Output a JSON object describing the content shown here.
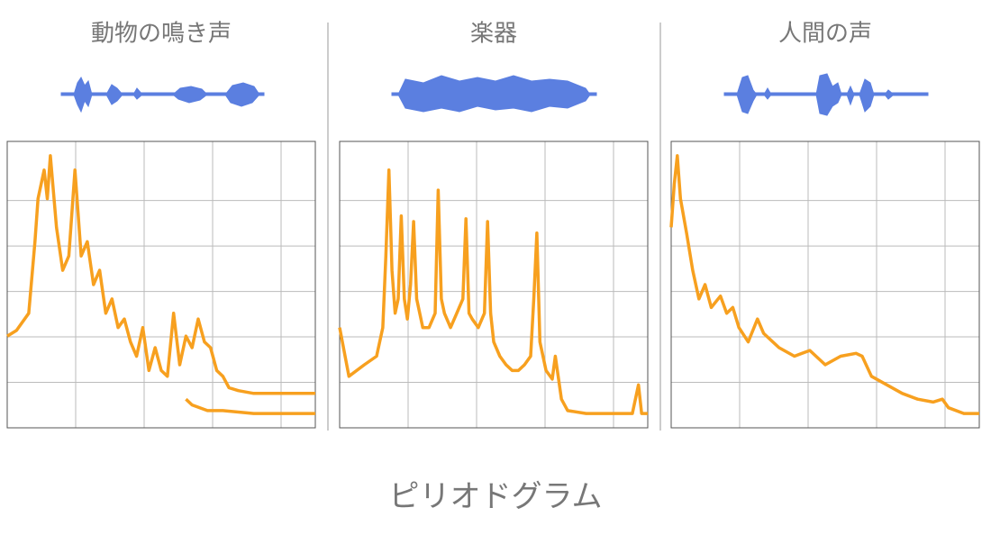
{
  "chart_data": [
    {
      "type": "line",
      "title": "動物の鳴き声",
      "color": "#f7a01f",
      "xlim": [
        0,
        100
      ],
      "ylim": [
        0,
        100
      ],
      "grid": true,
      "series": [
        {
          "x": [
            0,
            3,
            7,
            9,
            10,
            12,
            13,
            14,
            16,
            18,
            20,
            22,
            24,
            26,
            28,
            30,
            32,
            34,
            36,
            38,
            40,
            42,
            44,
            46,
            48,
            50,
            52,
            54,
            56,
            58,
            60,
            62,
            64,
            66,
            68,
            70,
            72,
            75,
            80,
            85,
            90,
            95,
            100
          ],
          "values": [
            32,
            34,
            40,
            65,
            80,
            90,
            80,
            95,
            70,
            55,
            60,
            90,
            60,
            65,
            50,
            55,
            40,
            45,
            35,
            38,
            30,
            25,
            35,
            20,
            28,
            20,
            18,
            40,
            22,
            32,
            28,
            38,
            30,
            28,
            20,
            18,
            14,
            13,
            12,
            12,
            12,
            12,
            12
          ]
        },
        {
          "x": [
            58,
            60,
            65,
            70,
            80,
            90,
            100
          ],
          "values": [
            10,
            8,
            6,
            6,
            5,
            5,
            5
          ]
        }
      ]
    },
    {
      "type": "line",
      "title": "楽器",
      "color": "#f7a01f",
      "xlim": [
        0,
        100
      ],
      "ylim": [
        0,
        100
      ],
      "grid": true,
      "series": [
        {
          "x": [
            0,
            3,
            8,
            12,
            14,
            15,
            16,
            17,
            18,
            19,
            20,
            21,
            22,
            23,
            24,
            25,
            27,
            29,
            31,
            32,
            33,
            34,
            36,
            38,
            40,
            41,
            42,
            43,
            45,
            47,
            48,
            49,
            50,
            52,
            54,
            56,
            58,
            60,
            62,
            63,
            64,
            65,
            67,
            69,
            70,
            72,
            74,
            80,
            85,
            90,
            95,
            97,
            98,
            100
          ],
          "values": [
            35,
            18,
            22,
            25,
            35,
            60,
            90,
            55,
            40,
            45,
            74,
            45,
            38,
            50,
            72,
            45,
            35,
            35,
            40,
            83,
            45,
            40,
            35,
            40,
            45,
            73,
            40,
            38,
            35,
            40,
            72,
            40,
            30,
            25,
            22,
            20,
            20,
            22,
            25,
            45,
            68,
            30,
            20,
            17,
            25,
            10,
            6,
            5,
            5,
            5,
            5,
            15,
            5,
            5
          ]
        }
      ]
    },
    {
      "type": "line",
      "title": "人間の声",
      "color": "#f7a01f",
      "xlim": [
        0,
        100
      ],
      "ylim": [
        0,
        100
      ],
      "grid": true,
      "series": [
        {
          "x": [
            0,
            1,
            2,
            3,
            5,
            7,
            9,
            11,
            13,
            16,
            18,
            20,
            22,
            25,
            28,
            30,
            35,
            40,
            45,
            50,
            55,
            60,
            62,
            65,
            70,
            75,
            80,
            85,
            88,
            90,
            95,
            100
          ],
          "values": [
            70,
            85,
            95,
            80,
            68,
            55,
            45,
            50,
            42,
            46,
            40,
            42,
            35,
            30,
            38,
            33,
            28,
            25,
            27,
            22,
            25,
            26,
            25,
            18,
            15,
            12,
            10,
            9,
            10,
            7,
            5,
            5
          ]
        }
      ]
    }
  ],
  "caption": "ピリオドグラム"
}
